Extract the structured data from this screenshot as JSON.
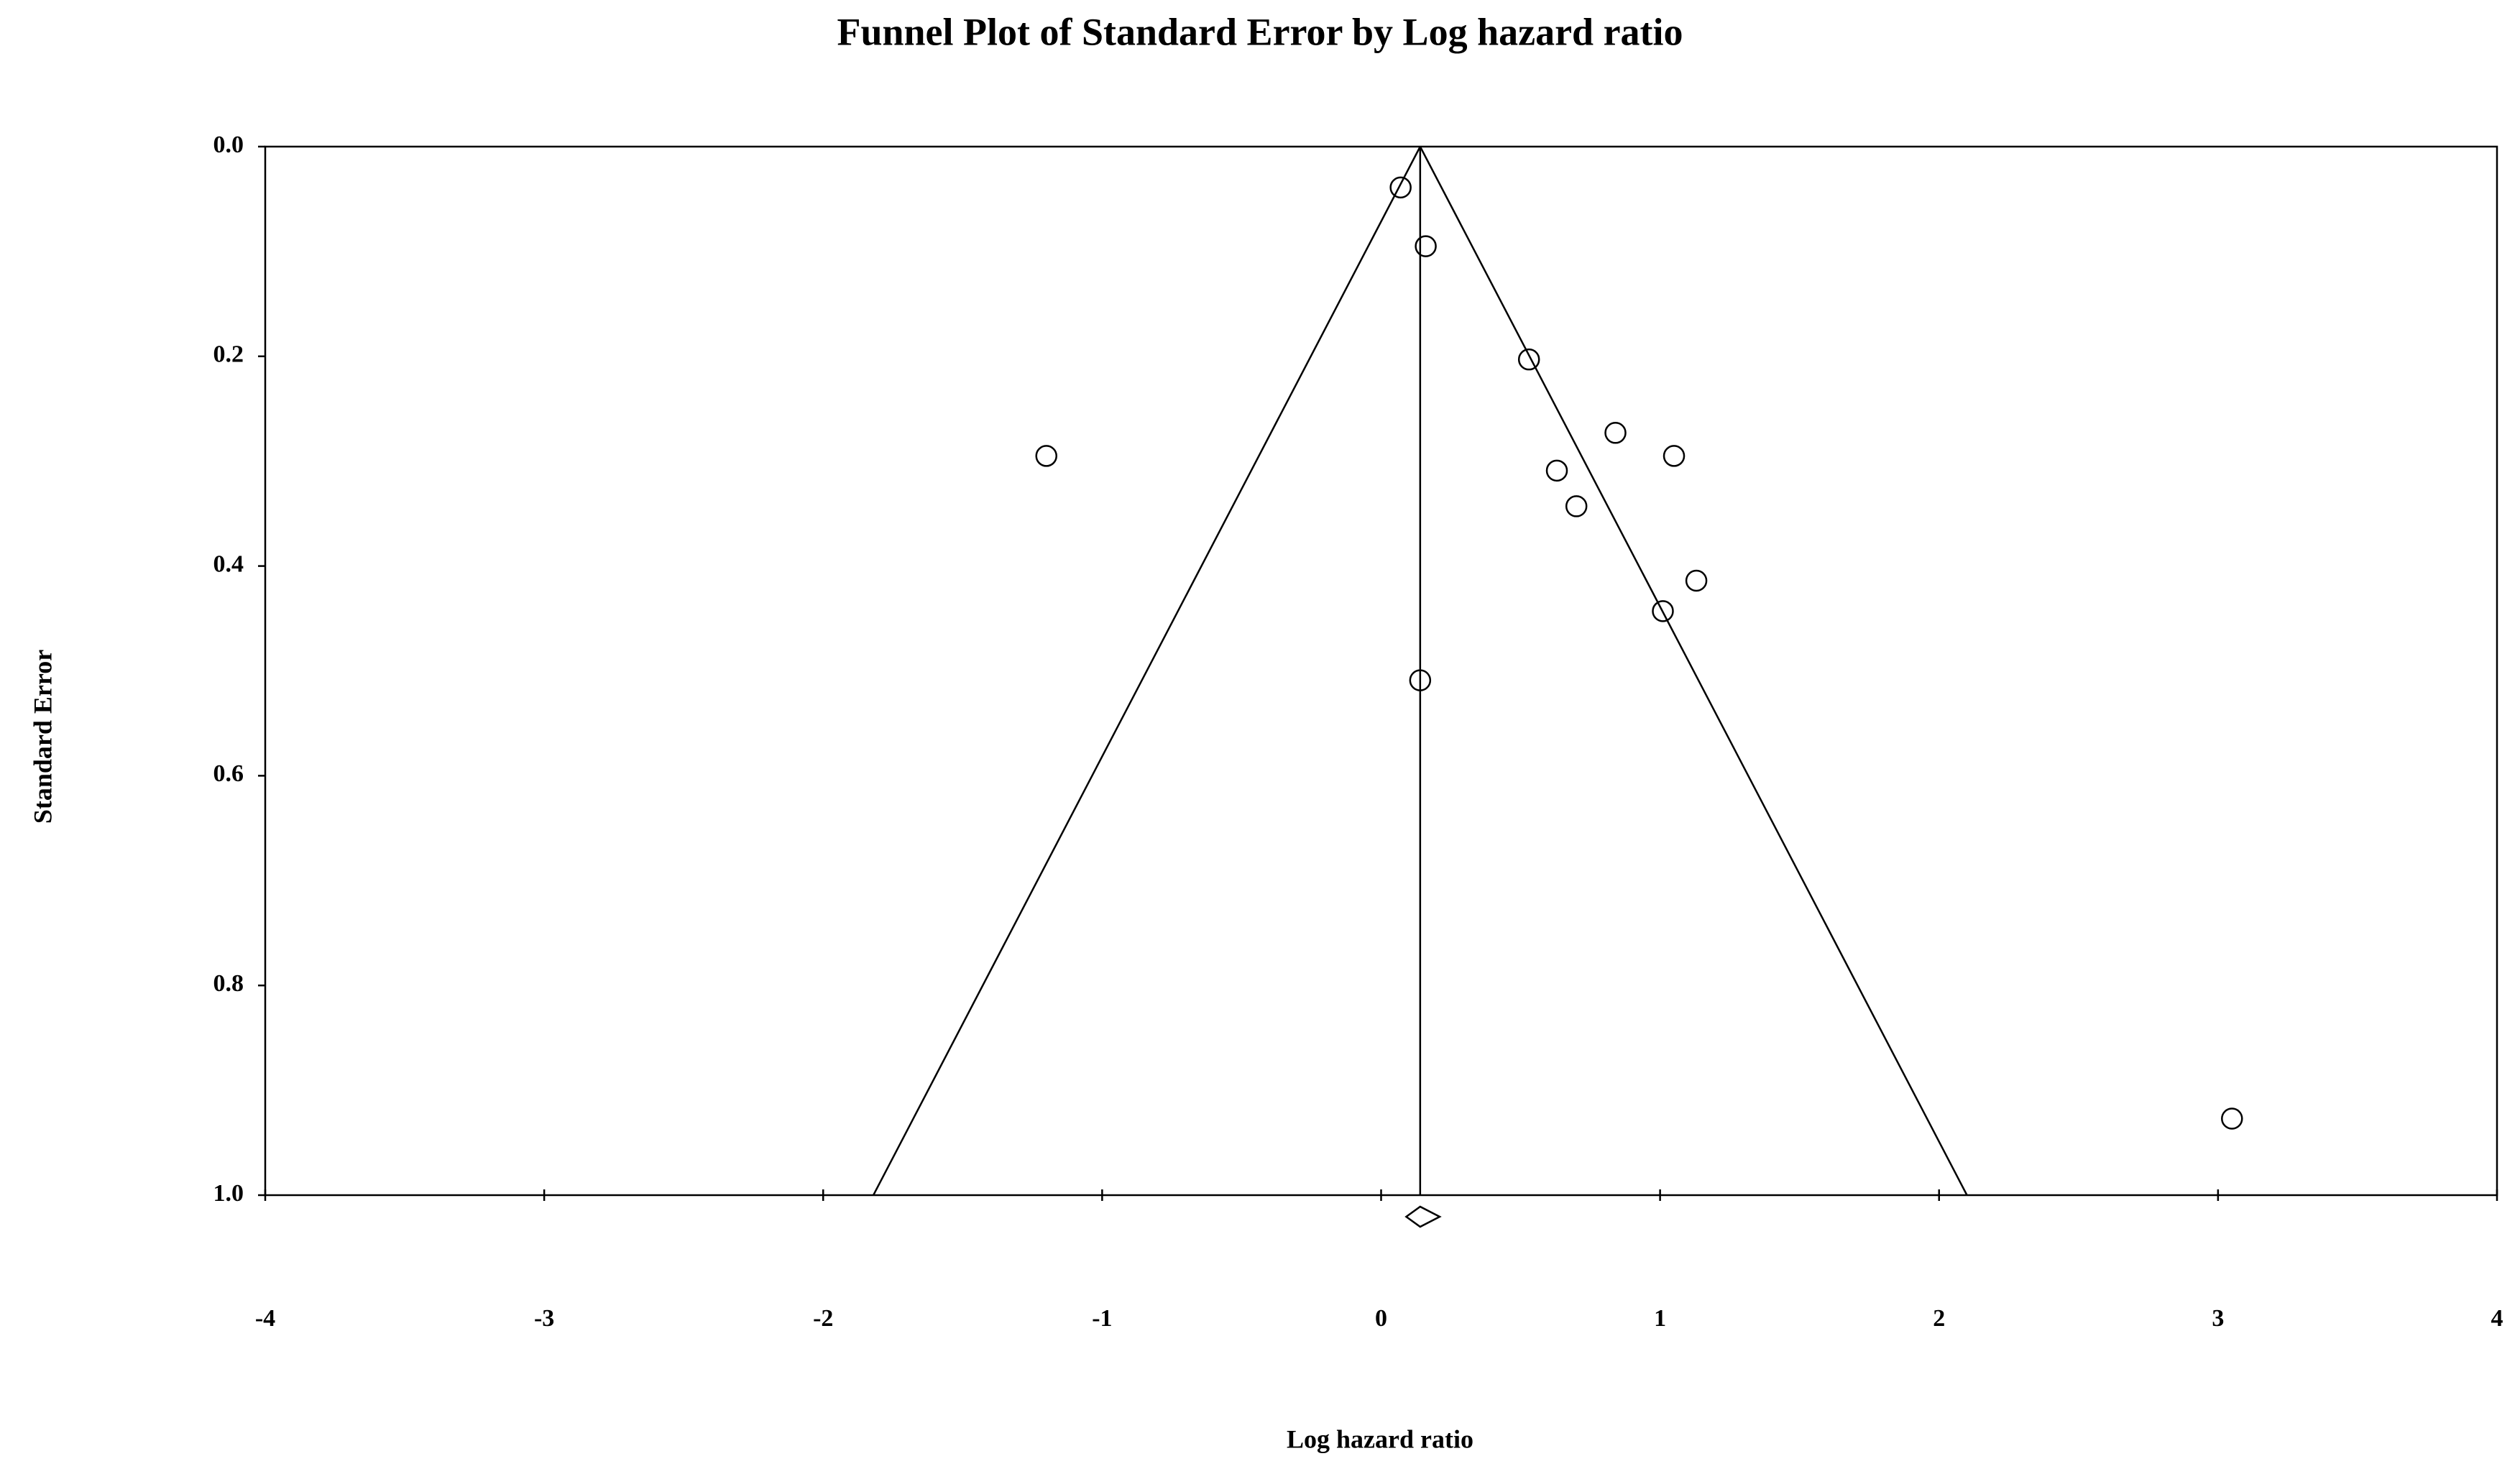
{
  "chart_data": {
    "type": "funnel",
    "title": "Funnel Plot of Standard Error by Log hazard ratio",
    "x_label": "Log hazard ratio",
    "y_label": "Standard Error",
    "x": [
      0.07,
      0.16,
      0.53,
      -1.2,
      0.84,
      1.05,
      0.63,
      0.7,
      1.13,
      1.01,
      0.14,
      3.05
    ],
    "values": [
      0.039,
      0.095,
      0.203,
      0.295,
      0.273,
      0.295,
      0.309,
      0.343,
      0.414,
      0.443,
      0.509,
      0.927
    ],
    "summary": 0.14,
    "summary_ci": [
      0.09,
      0.21
    ],
    "funnel_bottom": [
      -1.82,
      2.1
    ],
    "xlim": [
      -4,
      4
    ],
    "ylim": [
      0,
      1
    ],
    "y_inverted": true,
    "xticks": [
      -4,
      -3,
      -2,
      -1,
      0,
      1,
      2,
      3,
      4
    ],
    "yticks": [
      {
        "value": 0,
        "label": "0.0"
      },
      0.2,
      0.4,
      0.6,
      0.8,
      {
        "value": 1,
        "label": "1.0"
      }
    ],
    "color": "#000000"
  }
}
